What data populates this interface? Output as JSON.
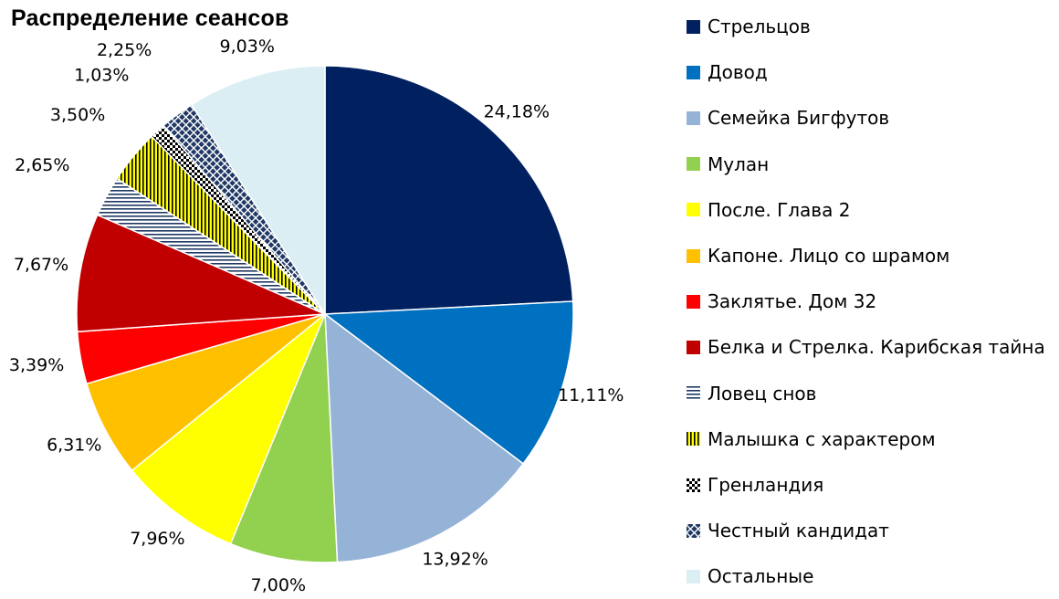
{
  "chart_data": {
    "type": "pie",
    "title": "Распределение сеансов",
    "slices": [
      {
        "label": "Стрельцов",
        "value": 24.18,
        "value_label": "24,18%",
        "color": "#002060",
        "pattern": "solid"
      },
      {
        "label": "Довод",
        "value": 11.11,
        "value_label": "11,11%",
        "color": "#0070C0",
        "pattern": "solid"
      },
      {
        "label": "Семейка Бигфутов",
        "value": 13.92,
        "value_label": "13,92%",
        "color": "#95B3D7",
        "pattern": "solid"
      },
      {
        "label": "Мулан",
        "value": 7.0,
        "value_label": "7,00%",
        "color": "#92D050",
        "pattern": "solid"
      },
      {
        "label": "После. Глава 2",
        "value": 7.96,
        "value_label": "7,96%",
        "color": "#FFFF00",
        "pattern": "solid"
      },
      {
        "label": "Капоне. Лицо со шрамом",
        "value": 6.31,
        "value_label": "6,31%",
        "color": "#FFC000",
        "pattern": "solid"
      },
      {
        "label": "Заклятье. Дом 32",
        "value": 3.39,
        "value_label": "3,39%",
        "color": "#FF0000",
        "pattern": "solid"
      },
      {
        "label": "Белка и Стрелка. Карибская тайна",
        "value": 7.67,
        "value_label": "7,67%",
        "color": "#C00000",
        "pattern": "solid"
      },
      {
        "label": "Ловец снов",
        "value": 2.65,
        "value_label": "2,65%",
        "color": "#1F3864",
        "pattern": "horizontal-stripes"
      },
      {
        "label": "Малышка с характером",
        "value": 3.5,
        "value_label": "3,50%",
        "color": "#FFFF00",
        "pattern": "vertical-stripes"
      },
      {
        "label": "Гренландия",
        "value": 1.03,
        "value_label": "1,03%",
        "color": "#000000",
        "pattern": "checker"
      },
      {
        "label": "Честный кандидат",
        "value": 2.25,
        "value_label": "2,25%",
        "color": "#1F3864",
        "pattern": "crosshatch"
      },
      {
        "label": "Остальные",
        "value": 9.03,
        "value_label": "9,03%",
        "color": "#DAEEF3",
        "pattern": "solid"
      }
    ],
    "start_angle": "12 o'clock",
    "direction": "clockwise",
    "legend_position": "right"
  }
}
